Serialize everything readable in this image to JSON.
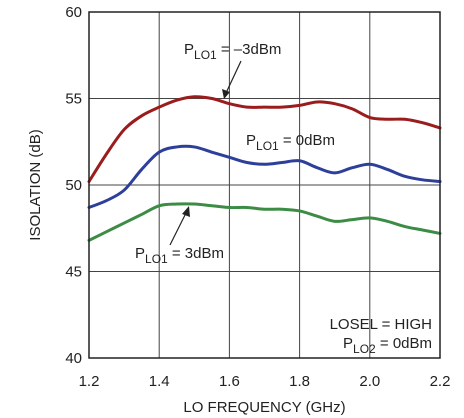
{
  "chart_data": {
    "type": "line",
    "title": "",
    "xlabel": "LO FREQUENCY (GHz)",
    "ylabel": "ISOLATION (dB)",
    "xlim": [
      1.2,
      2.2
    ],
    "ylim": [
      40,
      60
    ],
    "x_ticks": [
      "1.2",
      "1.4",
      "1.6",
      "1.8",
      "2.0",
      "2.2"
    ],
    "y_ticks": [
      "40",
      "45",
      "50",
      "55",
      "60"
    ],
    "grid": true,
    "series": [
      {
        "color": "#9b1c1c",
        "x": [
          1.2,
          1.25,
          1.3,
          1.35,
          1.4,
          1.45,
          1.5,
          1.55,
          1.6,
          1.65,
          1.7,
          1.75,
          1.8,
          1.85,
          1.9,
          1.95,
          2.0,
          2.05,
          2.1,
          2.15,
          2.2
        ],
        "y": [
          50.2,
          51.8,
          53.2,
          54.0,
          54.5,
          54.9,
          55.1,
          55.0,
          54.7,
          54.5,
          54.5,
          54.5,
          54.6,
          54.8,
          54.7,
          54.4,
          53.9,
          53.8,
          53.8,
          53.6,
          53.3
        ]
      },
      {
        "color": "#2e3f9a",
        "x": [
          1.2,
          1.25,
          1.3,
          1.35,
          1.4,
          1.45,
          1.5,
          1.55,
          1.6,
          1.65,
          1.7,
          1.75,
          1.8,
          1.85,
          1.9,
          1.95,
          2.0,
          2.05,
          2.1,
          2.15,
          2.2
        ],
        "y": [
          48.7,
          49.1,
          49.7,
          50.9,
          51.9,
          52.2,
          52.2,
          51.9,
          51.6,
          51.3,
          51.2,
          51.3,
          51.4,
          51.0,
          50.7,
          51.0,
          51.2,
          50.9,
          50.5,
          50.3,
          50.2
        ]
      },
      {
        "color": "#3c8c45",
        "x": [
          1.2,
          1.25,
          1.3,
          1.35,
          1.4,
          1.45,
          1.5,
          1.55,
          1.6,
          1.65,
          1.7,
          1.75,
          1.8,
          1.85,
          1.9,
          1.95,
          2.0,
          2.05,
          2.1,
          2.15,
          2.2
        ],
        "y": [
          46.8,
          47.3,
          47.8,
          48.3,
          48.8,
          48.9,
          48.9,
          48.8,
          48.7,
          48.7,
          48.6,
          48.6,
          48.5,
          48.2,
          47.9,
          48.0,
          48.1,
          47.9,
          47.6,
          47.4,
          47.2
        ]
      }
    ],
    "annotations": [
      {
        "main": "P",
        "sub": "LO1",
        "rest": " = –3dBm"
      },
      {
        "main": "P",
        "sub": "LO1",
        "rest": " = 0dBm"
      },
      {
        "main": "P",
        "sub": "LO1",
        "rest": " = 3dBm"
      }
    ],
    "legend_box": {
      "line1": "LOSEL = HIGH",
      "line2_main": "P",
      "line2_sub": "LO2",
      "line2_rest": " = 0dBm"
    }
  }
}
